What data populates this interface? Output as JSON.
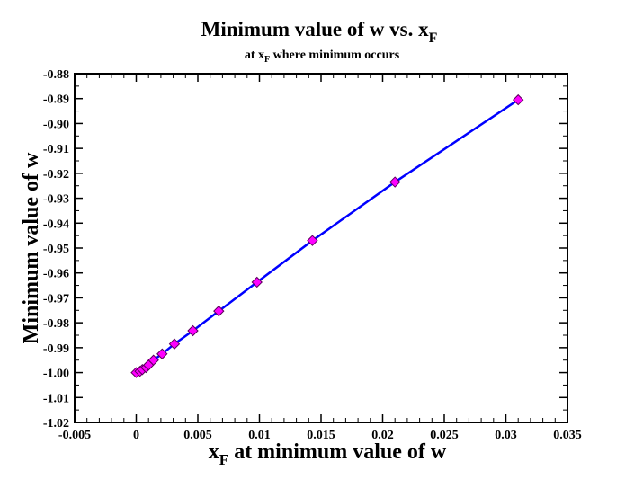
{
  "chart_data": {
    "type": "line",
    "title": "Minimum value of  w  vs. x",
    "title_subscript": "F",
    "subtitle_prefix": "at x",
    "subtitle_subscript": "F",
    "subtitle_suffix": " where minimum occurs",
    "xlabel_prefix": "x",
    "xlabel_subscript": "F",
    "xlabel_suffix": " at minimum value of w",
    "ylabel": "Minimum value of w",
    "xlim": [
      -0.005,
      0.035
    ],
    "ylim": [
      -1.02,
      -0.88
    ],
    "x_ticks": [
      "-0.005",
      "0",
      "0.005",
      "0.01",
      "0.015",
      "0.02",
      "0.025",
      "0.03",
      "0.035"
    ],
    "y_ticks": [
      "-0.88",
      "-0.89",
      "-0.90",
      "-0.91",
      "-0.92",
      "-0.93",
      "-0.94",
      "-0.95",
      "-0.96",
      "-0.97",
      "-0.98",
      "-0.99",
      "-1.00",
      "-1.01",
      "-1.02"
    ],
    "grid": false,
    "series": [
      {
        "line_color": "#0000ff",
        "marker": "diamond",
        "marker_color": "#ff00ff",
        "x": [
          0.0,
          0.0003,
          0.0005,
          0.0008,
          0.001,
          0.0014,
          0.0021,
          0.0031,
          0.0046,
          0.0067,
          0.0098,
          0.0143,
          0.021,
          0.031
        ],
        "y": [
          -1.0,
          -0.9995,
          -0.9988,
          -0.998,
          -0.997,
          -0.995,
          -0.9925,
          -0.9885,
          -0.9832,
          -0.9753,
          -0.9637,
          -0.947,
          -0.9235,
          -0.8905
        ]
      }
    ]
  }
}
